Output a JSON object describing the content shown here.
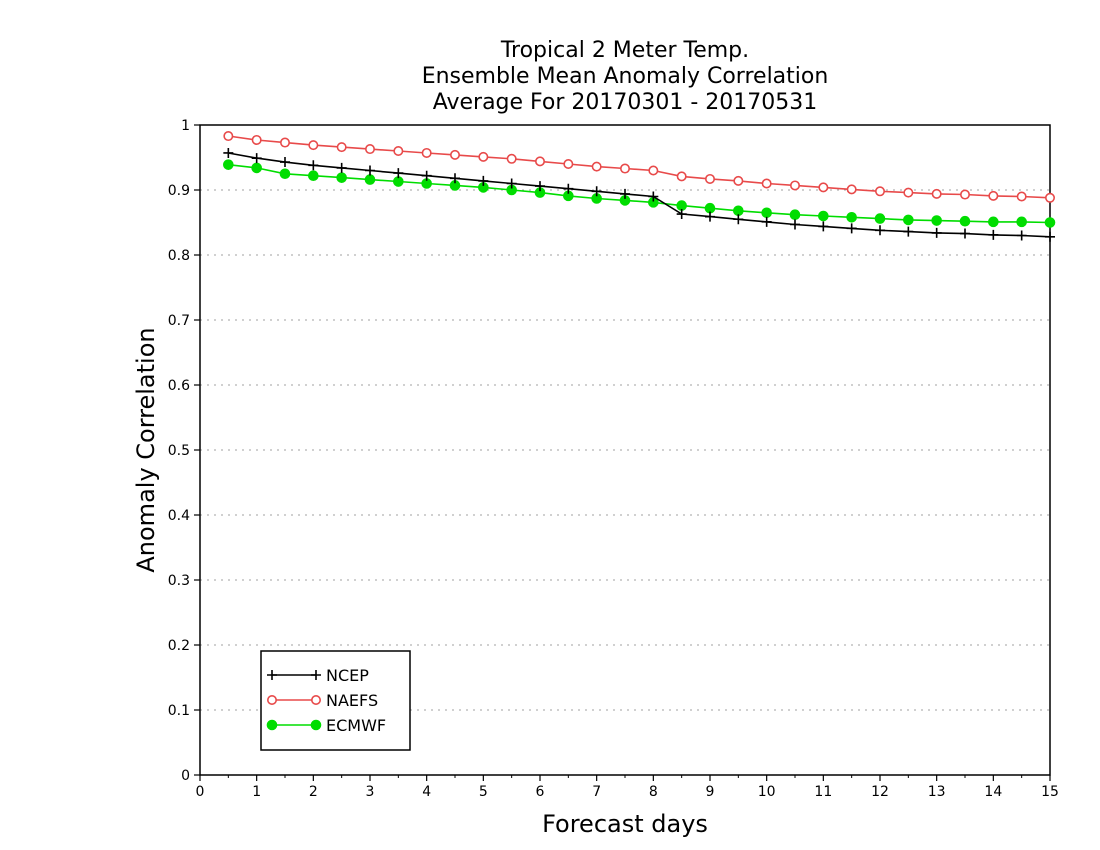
{
  "chart_data": {
    "type": "line",
    "title": [
      "Tropical 2 Meter Temp.",
      "Ensemble Mean Anomaly Correlation",
      "Average For 20170301 - 20170531"
    ],
    "xlabel": "Forecast days",
    "ylabel": "Anomaly Correlation",
    "xlim": [
      0,
      15
    ],
    "ylim": [
      0,
      1
    ],
    "x_ticks": [
      "0",
      "1",
      "2",
      "3",
      "4",
      "5",
      "6",
      "7",
      "8",
      "9",
      "10",
      "11",
      "12",
      "13",
      "14",
      "15"
    ],
    "y_ticks": [
      "0",
      "0.1",
      "0.2",
      "0.3",
      "0.4",
      "0.5",
      "0.6",
      "0.7",
      "0.8",
      "0.9",
      "1"
    ],
    "grid": "horizontal dotted",
    "legend_position": "bottom-left",
    "x": [
      0.5,
      1,
      1.5,
      2,
      2.5,
      3,
      3.5,
      4,
      4.5,
      5,
      5.5,
      6,
      6.5,
      7,
      7.5,
      8,
      8.5,
      9,
      9.5,
      10,
      10.5,
      11,
      11.5,
      12,
      12.5,
      13,
      13.5,
      14,
      14.5,
      15
    ],
    "series": [
      {
        "name": "NCEP",
        "color": "#000000",
        "marker": "plus",
        "values": [
          0.957,
          0.949,
          0.943,
          0.938,
          0.934,
          0.93,
          0.926,
          0.922,
          0.918,
          0.914,
          0.91,
          0.906,
          0.902,
          0.898,
          0.894,
          0.89,
          0.863,
          0.859,
          0.855,
          0.851,
          0.847,
          0.844,
          0.841,
          0.838,
          0.836,
          0.834,
          0.833,
          0.831,
          0.83,
          0.828
        ]
      },
      {
        "name": "NAEFS",
        "color": "#e84a4a",
        "marker": "open-circle",
        "values": [
          0.983,
          0.977,
          0.973,
          0.969,
          0.966,
          0.963,
          0.96,
          0.957,
          0.954,
          0.951,
          0.948,
          0.944,
          0.94,
          0.936,
          0.933,
          0.93,
          0.921,
          0.917,
          0.914,
          0.91,
          0.907,
          0.904,
          0.901,
          0.898,
          0.896,
          0.894,
          0.893,
          0.891,
          0.89,
          0.888
        ]
      },
      {
        "name": "ECMWF",
        "color": "#00dd00",
        "marker": "filled-circle",
        "values": [
          0.939,
          0.934,
          0.925,
          0.922,
          0.919,
          0.916,
          0.913,
          0.91,
          0.907,
          0.904,
          0.9,
          0.896,
          0.891,
          0.887,
          0.884,
          0.881,
          0.876,
          0.872,
          0.868,
          0.865,
          0.862,
          0.86,
          0.858,
          0.856,
          0.854,
          0.853,
          0.852,
          0.851,
          0.851,
          0.85
        ]
      }
    ]
  }
}
